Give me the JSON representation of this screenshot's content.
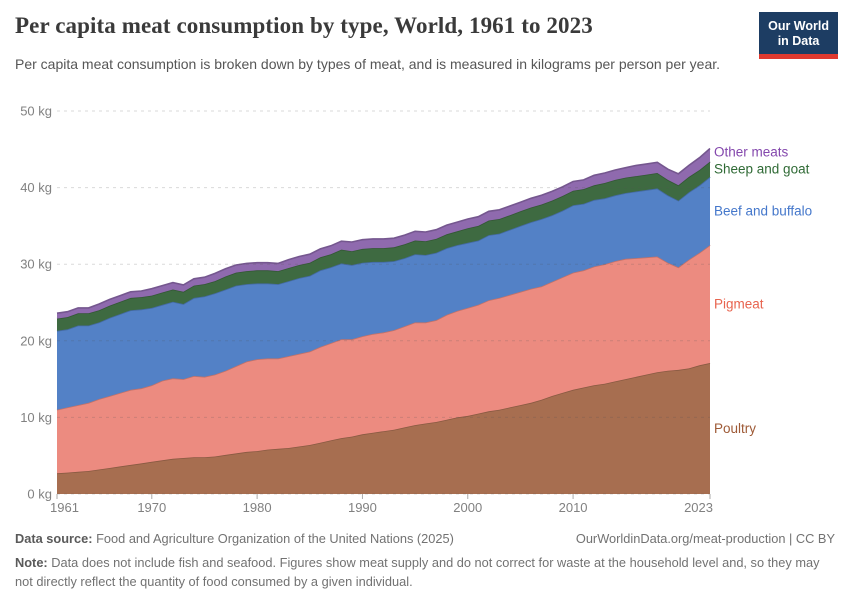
{
  "header": {
    "title": "Per capita meat consumption by type, World, 1961 to 2023",
    "subtitle": "Per capita meat consumption is broken down by types of meat, and is measured in kilograms per person per year.",
    "logo": {
      "line1": "Our World",
      "line2": "in Data",
      "bg_color": "#1d3d63",
      "accent_color": "#e0392e"
    }
  },
  "chart_data": {
    "type": "area",
    "stacked": true,
    "title": "Per capita meat consumption by type, World, 1961 to 2023",
    "unit": "kg per person per year",
    "ylim": [
      0,
      50
    ],
    "grid": "dashed",
    "legend_position": "right",
    "y_ticks": [
      {
        "value": 0,
        "label": "0 kg"
      },
      {
        "value": 10,
        "label": "10 kg"
      },
      {
        "value": 20,
        "label": "20 kg"
      },
      {
        "value": 30,
        "label": "30 kg"
      },
      {
        "value": 40,
        "label": "40 kg"
      },
      {
        "value": 50,
        "label": "50 kg"
      }
    ],
    "x_tick_years": [
      1961,
      1970,
      1980,
      1990,
      2000,
      2010,
      2023
    ],
    "x": [
      1961,
      1962,
      1963,
      1964,
      1965,
      1966,
      1967,
      1968,
      1969,
      1970,
      1971,
      1972,
      1973,
      1974,
      1975,
      1976,
      1977,
      1978,
      1979,
      1980,
      1981,
      1982,
      1983,
      1984,
      1985,
      1986,
      1987,
      1988,
      1989,
      1990,
      1991,
      1992,
      1993,
      1994,
      1995,
      1996,
      1997,
      1998,
      1999,
      2000,
      2001,
      2002,
      2003,
      2004,
      2005,
      2006,
      2007,
      2008,
      2009,
      2010,
      2011,
      2012,
      2013,
      2014,
      2015,
      2016,
      2017,
      2018,
      2019,
      2020,
      2021,
      2022,
      2023
    ],
    "series": [
      {
        "name": "Poultry",
        "color": "#a76e50",
        "text_color": "#9e5a36",
        "values": [
          2.7,
          2.8,
          2.9,
          3.0,
          3.2,
          3.4,
          3.6,
          3.8,
          4.0,
          4.2,
          4.4,
          4.6,
          4.7,
          4.8,
          4.8,
          4.9,
          5.1,
          5.3,
          5.5,
          5.6,
          5.8,
          5.9,
          6.0,
          6.2,
          6.4,
          6.7,
          7.0,
          7.3,
          7.5,
          7.8,
          8.0,
          8.2,
          8.4,
          8.7,
          9.0,
          9.2,
          9.4,
          9.7,
          10.0,
          10.2,
          10.5,
          10.8,
          11.0,
          11.3,
          11.6,
          11.9,
          12.3,
          12.8,
          13.2,
          13.6,
          13.9,
          14.2,
          14.4,
          14.7,
          15.0,
          15.3,
          15.6,
          15.9,
          16.1,
          16.2,
          16.4,
          16.8,
          17.1
        ]
      },
      {
        "name": "Pigmeat",
        "color": "#ec8b80",
        "text_color": "#e8644f",
        "values": [
          8.3,
          8.5,
          8.7,
          8.9,
          9.2,
          9.4,
          9.6,
          9.8,
          9.8,
          10.0,
          10.4,
          10.5,
          10.3,
          10.6,
          10.5,
          10.7,
          11.0,
          11.4,
          11.8,
          12.0,
          11.9,
          11.8,
          12.0,
          12.1,
          12.2,
          12.5,
          12.7,
          12.9,
          12.7,
          12.8,
          12.9,
          12.9,
          13.0,
          13.2,
          13.4,
          13.2,
          13.3,
          13.7,
          13.9,
          14.1,
          14.2,
          14.5,
          14.6,
          14.7,
          14.8,
          14.9,
          14.8,
          14.9,
          15.1,
          15.3,
          15.3,
          15.5,
          15.6,
          15.7,
          15.7,
          15.5,
          15.3,
          15.1,
          14.1,
          13.4,
          14.2,
          14.7,
          15.4
        ]
      },
      {
        "name": "Beef and buffalo",
        "color": "#5381c6",
        "text_color": "#4477cb",
        "values": [
          10.3,
          10.2,
          10.4,
          10.1,
          10.0,
          10.2,
          10.3,
          10.4,
          10.3,
          10.1,
          9.9,
          10.0,
          9.8,
          10.2,
          10.5,
          10.6,
          10.6,
          10.5,
          10.1,
          9.9,
          9.8,
          9.7,
          9.8,
          9.9,
          9.9,
          10.0,
          9.9,
          9.9,
          9.7,
          9.6,
          9.4,
          9.2,
          9.0,
          8.9,
          8.9,
          8.8,
          8.8,
          8.7,
          8.6,
          8.5,
          8.4,
          8.5,
          8.4,
          8.5,
          8.6,
          8.7,
          8.8,
          8.7,
          8.7,
          8.8,
          8.7,
          8.7,
          8.6,
          8.6,
          8.6,
          8.7,
          8.8,
          8.9,
          8.8,
          8.7,
          8.8,
          8.8,
          8.9
        ]
      },
      {
        "name": "Sheep and goat",
        "color": "#3e6a41",
        "text_color": "#2f6a35",
        "values": [
          1.6,
          1.6,
          1.6,
          1.6,
          1.6,
          1.6,
          1.6,
          1.6,
          1.6,
          1.6,
          1.6,
          1.6,
          1.6,
          1.6,
          1.6,
          1.6,
          1.7,
          1.7,
          1.7,
          1.7,
          1.7,
          1.7,
          1.7,
          1.7,
          1.7,
          1.7,
          1.7,
          1.8,
          1.8,
          1.8,
          1.8,
          1.8,
          1.8,
          1.8,
          1.8,
          1.8,
          1.8,
          1.8,
          1.8,
          1.9,
          1.9,
          1.9,
          1.9,
          1.9,
          1.9,
          1.9,
          1.9,
          1.9,
          1.9,
          1.9,
          1.9,
          1.9,
          2.0,
          2.0,
          2.0,
          2.0,
          2.0,
          2.0,
          2.0,
          2.0,
          2.0,
          2.0,
          2.0
        ]
      },
      {
        "name": "Other meats",
        "color": "#8f6aae",
        "text_color": "#8448ad",
        "values": [
          0.7,
          0.7,
          0.7,
          0.7,
          0.8,
          0.8,
          0.8,
          0.8,
          0.8,
          0.9,
          0.9,
          0.9,
          0.9,
          0.9,
          0.9,
          1.0,
          1.0,
          1.0,
          1.0,
          1.0,
          1.0,
          1.0,
          1.1,
          1.1,
          1.1,
          1.1,
          1.1,
          1.1,
          1.2,
          1.2,
          1.2,
          1.2,
          1.2,
          1.2,
          1.2,
          1.2,
          1.2,
          1.2,
          1.2,
          1.2,
          1.2,
          1.2,
          1.2,
          1.2,
          1.2,
          1.2,
          1.2,
          1.2,
          1.2,
          1.2,
          1.2,
          1.3,
          1.3,
          1.3,
          1.3,
          1.4,
          1.4,
          1.4,
          1.4,
          1.5,
          1.5,
          1.6,
          1.7
        ]
      }
    ]
  },
  "footer": {
    "data_source_label": "Data source:",
    "data_source_text": "Food and Agriculture Organization of the United Nations (2025)",
    "url_text": "OurWorldinData.org/meat-production | CC BY",
    "note_label": "Note:",
    "note_text": "Data does not include fish and seafood. Figures show meat supply and do not correct for waste at the household level and, so they may not directly reflect the quantity of food consumed by a given individual."
  }
}
